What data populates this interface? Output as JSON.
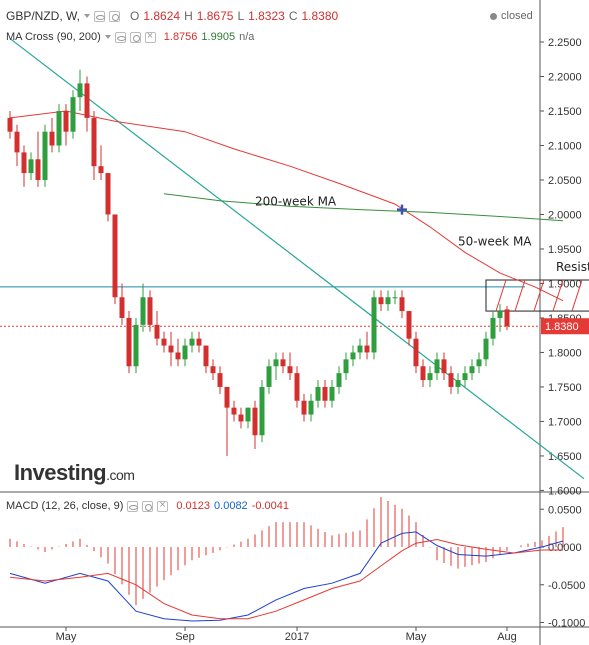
{
  "header": {
    "symbol": "GBP/NZD, W,",
    "o_label": "O",
    "o_value": "1.8624",
    "h_label": "H",
    "h_value": "1.8675",
    "l_label": "L",
    "l_value": "1.8323",
    "c_label": "C",
    "c_value": "1.8380",
    "status": "closed"
  },
  "ma_row": {
    "label": "MA Cross (90, 200)",
    "v1": "1.8756",
    "v2": "1.9905",
    "v3": "n/a"
  },
  "macd_row": {
    "label": "MACD (12, 26, close, 9)",
    "v1": "0.0123",
    "v2": "0.0082",
    "v3": "-0.0041"
  },
  "logo": "Investing",
  "logo_suffix": ".com",
  "colors": {
    "up": "#2e9e3e",
    "down": "#d32f2f",
    "ma_fast": "#e53935",
    "ma_slow": "#388e3c",
    "trendline": "#26a69a",
    "resistance": "#1e88a8",
    "macd": "#1e3fd6",
    "signal": "#e53935",
    "price_tag": "#e53935"
  },
  "chart_data": [
    {
      "type": "candlestick",
      "title": "GBP/NZD, W",
      "price_tick_labels": [
        "2.2500",
        "2.2000",
        "2.1500",
        "2.1000",
        "2.0500",
        "2.0000",
        "1.9500",
        "1.9000",
        "1.8500",
        "1.8000",
        "1.7500",
        "1.7000",
        "1.6500",
        "1.6000"
      ],
      "ylim": [
        1.585,
        2.275
      ],
      "x_tick_labels": [
        {
          "label": "May",
          "week": 8
        },
        {
          "label": "Sep",
          "week": 25
        },
        {
          "label": "2017",
          "week": 41
        },
        {
          "label": "May",
          "week": 58
        },
        {
          "label": "Aug",
          "week": 71
        }
      ],
      "current_price_label": "1.8380",
      "current_price": 1.838,
      "annotations": [
        {
          "text": "200-week MA",
          "week": 35,
          "price": 2.013
        },
        {
          "text": "50-week MA",
          "week": 64,
          "price": 1.955
        },
        {
          "text": "Resistance zone",
          "week": 78,
          "price": 1.918
        }
      ],
      "resistance_zone": {
        "week_start": 68,
        "week_end": 88,
        "price_low": 1.86,
        "price_high": 1.905
      },
      "resistance_line": 1.895,
      "trendline": [
        {
          "week": 0,
          "price": 2.255
        },
        {
          "week": 82,
          "price": 1.617
        }
      ],
      "cross_marker": {
        "week": 56,
        "price": 2.007
      },
      "series": [
        {
          "name": "MA 90",
          "points": [
            [
              0,
              2.14
            ],
            [
              8,
              2.15
            ],
            [
              15,
              2.135
            ],
            [
              25,
              2.12
            ],
            [
              32,
              2.095
            ],
            [
              40,
              2.07
            ],
            [
              47,
              2.045
            ],
            [
              55,
              2.015
            ],
            [
              60,
              1.982
            ],
            [
              65,
              1.945
            ],
            [
              70,
              1.915
            ],
            [
              75,
              1.895
            ],
            [
              79,
              1.875
            ]
          ]
        },
        {
          "name": "MA 200",
          "points": [
            [
              22,
              2.03
            ],
            [
              30,
              2.02
            ],
            [
              40,
              2.012
            ],
            [
              50,
              2.007
            ],
            [
              60,
              2.003
            ],
            [
              70,
              1.997
            ],
            [
              79,
              1.991
            ]
          ]
        }
      ],
      "candles": [
        [
          2.14,
          2.15,
          2.11,
          2.12
        ],
        [
          2.12,
          2.13,
          2.07,
          2.09
        ],
        [
          2.09,
          2.1,
          2.04,
          2.06
        ],
        [
          2.06,
          2.09,
          2.05,
          2.08
        ],
        [
          2.08,
          2.12,
          2.04,
          2.05
        ],
        [
          2.05,
          2.13,
          2.04,
          2.12
        ],
        [
          2.12,
          2.14,
          2.09,
          2.1
        ],
        [
          2.1,
          2.16,
          2.09,
          2.15
        ],
        [
          2.15,
          2.16,
          2.1,
          2.12
        ],
        [
          2.12,
          2.18,
          2.11,
          2.17
        ],
        [
          2.17,
          2.21,
          2.15,
          2.19
        ],
        [
          2.19,
          2.2,
          2.12,
          2.14
        ],
        [
          2.14,
          2.15,
          2.05,
          2.07
        ],
        [
          2.07,
          2.1,
          2.05,
          2.06
        ],
        [
          2.06,
          2.06,
          1.99,
          2.0
        ],
        [
          2.0,
          2.0,
          1.87,
          1.88
        ],
        [
          1.88,
          1.9,
          1.84,
          1.85
        ],
        [
          1.85,
          1.86,
          1.77,
          1.78
        ],
        [
          1.78,
          1.85,
          1.77,
          1.84
        ],
        [
          1.84,
          1.9,
          1.83,
          1.88
        ],
        [
          1.88,
          1.89,
          1.83,
          1.84
        ],
        [
          1.84,
          1.86,
          1.81,
          1.82
        ],
        [
          1.82,
          1.83,
          1.8,
          1.81
        ],
        [
          1.81,
          1.83,
          1.78,
          1.8
        ],
        [
          1.8,
          1.82,
          1.78,
          1.79
        ],
        [
          1.79,
          1.82,
          1.78,
          1.81
        ],
        [
          1.81,
          1.83,
          1.8,
          1.82
        ],
        [
          1.82,
          1.83,
          1.8,
          1.81
        ],
        [
          1.81,
          1.81,
          1.77,
          1.78
        ],
        [
          1.78,
          1.79,
          1.76,
          1.77
        ],
        [
          1.77,
          1.78,
          1.74,
          1.75
        ],
        [
          1.75,
          1.75,
          1.65,
          1.72
        ],
        [
          1.72,
          1.73,
          1.7,
          1.71
        ],
        [
          1.71,
          1.72,
          1.69,
          1.7
        ],
        [
          1.7,
          1.72,
          1.69,
          1.72
        ],
        [
          1.72,
          1.73,
          1.66,
          1.68
        ],
        [
          1.68,
          1.76,
          1.67,
          1.75
        ],
        [
          1.75,
          1.79,
          1.74,
          1.78
        ],
        [
          1.78,
          1.8,
          1.76,
          1.79
        ],
        [
          1.79,
          1.8,
          1.77,
          1.78
        ],
        [
          1.78,
          1.8,
          1.76,
          1.77
        ],
        [
          1.77,
          1.78,
          1.72,
          1.73
        ],
        [
          1.73,
          1.74,
          1.7,
          1.71
        ],
        [
          1.71,
          1.74,
          1.7,
          1.73
        ],
        [
          1.73,
          1.76,
          1.72,
          1.75
        ],
        [
          1.75,
          1.76,
          1.72,
          1.73
        ],
        [
          1.73,
          1.76,
          1.72,
          1.75
        ],
        [
          1.75,
          1.78,
          1.74,
          1.77
        ],
        [
          1.77,
          1.8,
          1.76,
          1.79
        ],
        [
          1.79,
          1.81,
          1.78,
          1.8
        ],
        [
          1.8,
          1.82,
          1.79,
          1.81
        ],
        [
          1.81,
          1.83,
          1.79,
          1.8
        ],
        [
          1.8,
          1.89,
          1.79,
          1.88
        ],
        [
          1.88,
          1.89,
          1.86,
          1.87
        ],
        [
          1.87,
          1.89,
          1.86,
          1.88
        ],
        [
          1.88,
          1.89,
          1.87,
          1.88
        ],
        [
          1.88,
          1.89,
          1.85,
          1.86
        ],
        [
          1.86,
          1.86,
          1.81,
          1.82
        ],
        [
          1.82,
          1.83,
          1.77,
          1.78
        ],
        [
          1.78,
          1.79,
          1.75,
          1.76
        ],
        [
          1.76,
          1.78,
          1.75,
          1.77
        ],
        [
          1.77,
          1.8,
          1.76,
          1.79
        ],
        [
          1.79,
          1.8,
          1.76,
          1.77
        ],
        [
          1.77,
          1.78,
          1.74,
          1.75
        ],
        [
          1.75,
          1.77,
          1.74,
          1.76
        ],
        [
          1.76,
          1.78,
          1.75,
          1.77
        ],
        [
          1.77,
          1.79,
          1.76,
          1.78
        ],
        [
          1.78,
          1.8,
          1.77,
          1.79
        ],
        [
          1.79,
          1.83,
          1.78,
          1.82
        ],
        [
          1.82,
          1.86,
          1.81,
          1.85
        ],
        [
          1.85,
          1.87,
          1.83,
          1.86
        ],
        [
          1.8624,
          1.8675,
          1.8323,
          1.838
        ]
      ]
    },
    {
      "type": "bar+line",
      "title": "MACD (12, 26, close, 9)",
      "tick_labels": [
        "0.0500",
        "0.0000",
        "-0.0500",
        "-0.1000"
      ],
      "ylim": [
        -0.1,
        0.065
      ],
      "series": [
        {
          "name": "MACD",
          "points": [
            [
              0,
              -0.035
            ],
            [
              5,
              -0.048
            ],
            [
              10,
              -0.035
            ],
            [
              14,
              -0.045
            ],
            [
              18,
              -0.085
            ],
            [
              22,
              -0.095
            ],
            [
              26,
              -0.098
            ],
            [
              30,
              -0.097
            ],
            [
              34,
              -0.09
            ],
            [
              38,
              -0.07
            ],
            [
              42,
              -0.055
            ],
            [
              46,
              -0.048
            ],
            [
              50,
              -0.035
            ],
            [
              53,
              0.005
            ],
            [
              56,
              0.018
            ],
            [
              58,
              0.02
            ],
            [
              61,
              0.002
            ],
            [
              64,
              -0.01
            ],
            [
              68,
              -0.012
            ],
            [
              72,
              -0.008
            ],
            [
              76,
              0.0
            ],
            [
              79,
              0.008
            ]
          ]
        },
        {
          "name": "Signal",
          "points": [
            [
              0,
              -0.04
            ],
            [
              5,
              -0.045
            ],
            [
              10,
              -0.04
            ],
            [
              14,
              -0.035
            ],
            [
              18,
              -0.05
            ],
            [
              22,
              -0.075
            ],
            [
              26,
              -0.09
            ],
            [
              30,
              -0.095
            ],
            [
              34,
              -0.095
            ],
            [
              38,
              -0.085
            ],
            [
              42,
              -0.07
            ],
            [
              46,
              -0.055
            ],
            [
              50,
              -0.045
            ],
            [
              53,
              -0.025
            ],
            [
              56,
              -0.005
            ],
            [
              58,
              0.005
            ],
            [
              61,
              0.01
            ],
            [
              64,
              0.003
            ],
            [
              68,
              -0.003
            ],
            [
              72,
              -0.008
            ],
            [
              76,
              -0.004
            ],
            [
              79,
              -0.004
            ]
          ]
        }
      ]
    }
  ]
}
